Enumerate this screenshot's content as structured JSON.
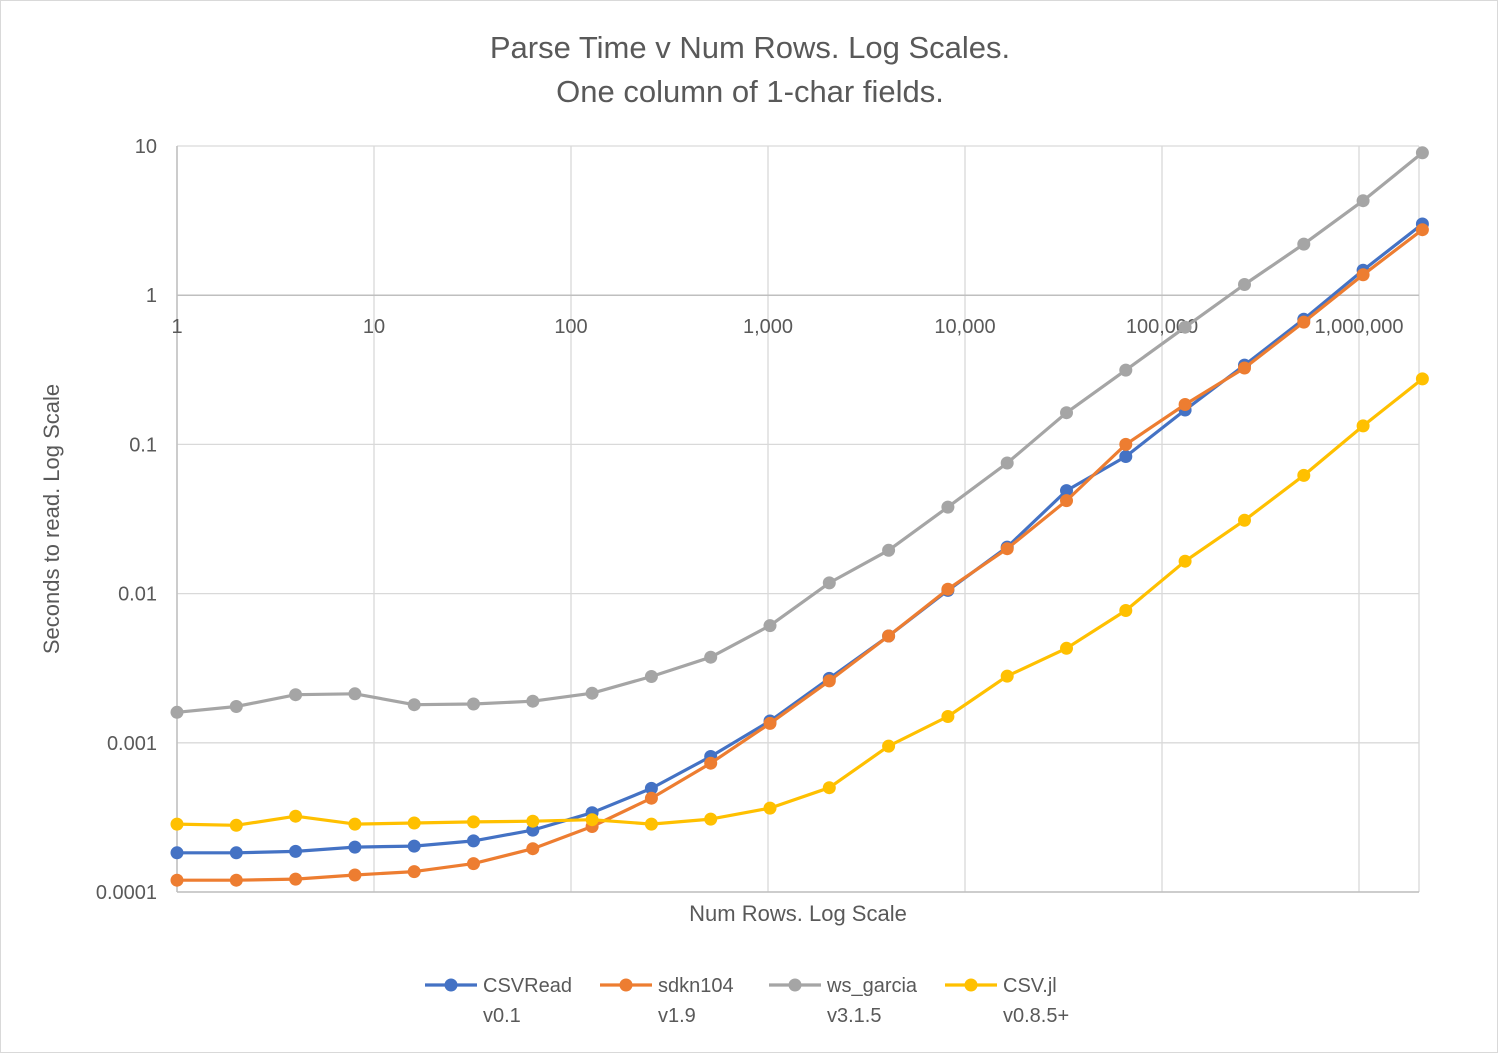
{
  "chart_data": {
    "type": "line",
    "title_line1": "Parse Time v Num Rows. Log Scales.",
    "title_line2": "One column of 1-char fields.",
    "xlabel": "Num Rows. Log Scale",
    "ylabel": "Seconds to read. Log Scale",
    "x_scale": "log",
    "y_scale": "log",
    "xlim": [
      1,
      2097152
    ],
    "ylim": [
      0.0001,
      10
    ],
    "grid": true,
    "legend_position": "bottom",
    "x_tick_labels": [
      "1",
      "10",
      "100",
      "1,000",
      "10,000",
      "100,000",
      "1,000,000"
    ],
    "y_tick_labels": [
      "10",
      "1",
      "0.1",
      "0.01",
      "0.001",
      "0.0001"
    ],
    "x": [
      1,
      2,
      4,
      8,
      16,
      32,
      64,
      128,
      256,
      512,
      1024,
      2048,
      4096,
      8192,
      16384,
      32768,
      65536,
      131072,
      262144,
      524288,
      1048576,
      2097152
    ],
    "series": [
      {
        "name": "CSVRead",
        "version": "v0.1",
        "color": "#4472C4",
        "values": [
          0.000183,
          0.000183,
          0.000187,
          0.0002,
          0.000203,
          0.00022,
          0.00026,
          0.00034,
          0.000495,
          0.00081,
          0.0014,
          0.0027,
          0.0052,
          0.0105,
          0.0205,
          0.049,
          0.083,
          0.17,
          0.34,
          0.69,
          1.47,
          3.0
        ]
      },
      {
        "name": "sdkn104",
        "version": "v1.9",
        "color": "#ED7D31",
        "values": [
          0.00012,
          0.00012,
          0.000122,
          0.00013,
          0.000137,
          0.000155,
          0.000195,
          0.000275,
          0.000425,
          0.00073,
          0.00135,
          0.0026,
          0.0052,
          0.0107,
          0.02,
          0.042,
          0.1,
          0.185,
          0.325,
          0.66,
          1.37,
          2.75
        ]
      },
      {
        "name": "ws_garcia",
        "version": "v3.1.5",
        "color": "#A5A5A5",
        "values": [
          0.0016,
          0.00175,
          0.0021,
          0.00213,
          0.0018,
          0.00182,
          0.0019,
          0.00215,
          0.00278,
          0.00375,
          0.0061,
          0.0118,
          0.0195,
          0.038,
          0.075,
          0.163,
          0.315,
          0.61,
          1.18,
          2.2,
          4.3,
          9.0
        ]
      },
      {
        "name": "CSV.jl",
        "version": "v0.8.5+",
        "color": "#FFC000",
        "values": [
          0.000285,
          0.00028,
          0.000322,
          0.000285,
          0.00029,
          0.000295,
          0.000298,
          0.000305,
          0.000285,
          0.000308,
          0.000365,
          0.0005,
          0.00095,
          0.0015,
          0.0028,
          0.0043,
          0.0077,
          0.0165,
          0.031,
          0.062,
          0.133,
          0.275
        ]
      }
    ]
  }
}
